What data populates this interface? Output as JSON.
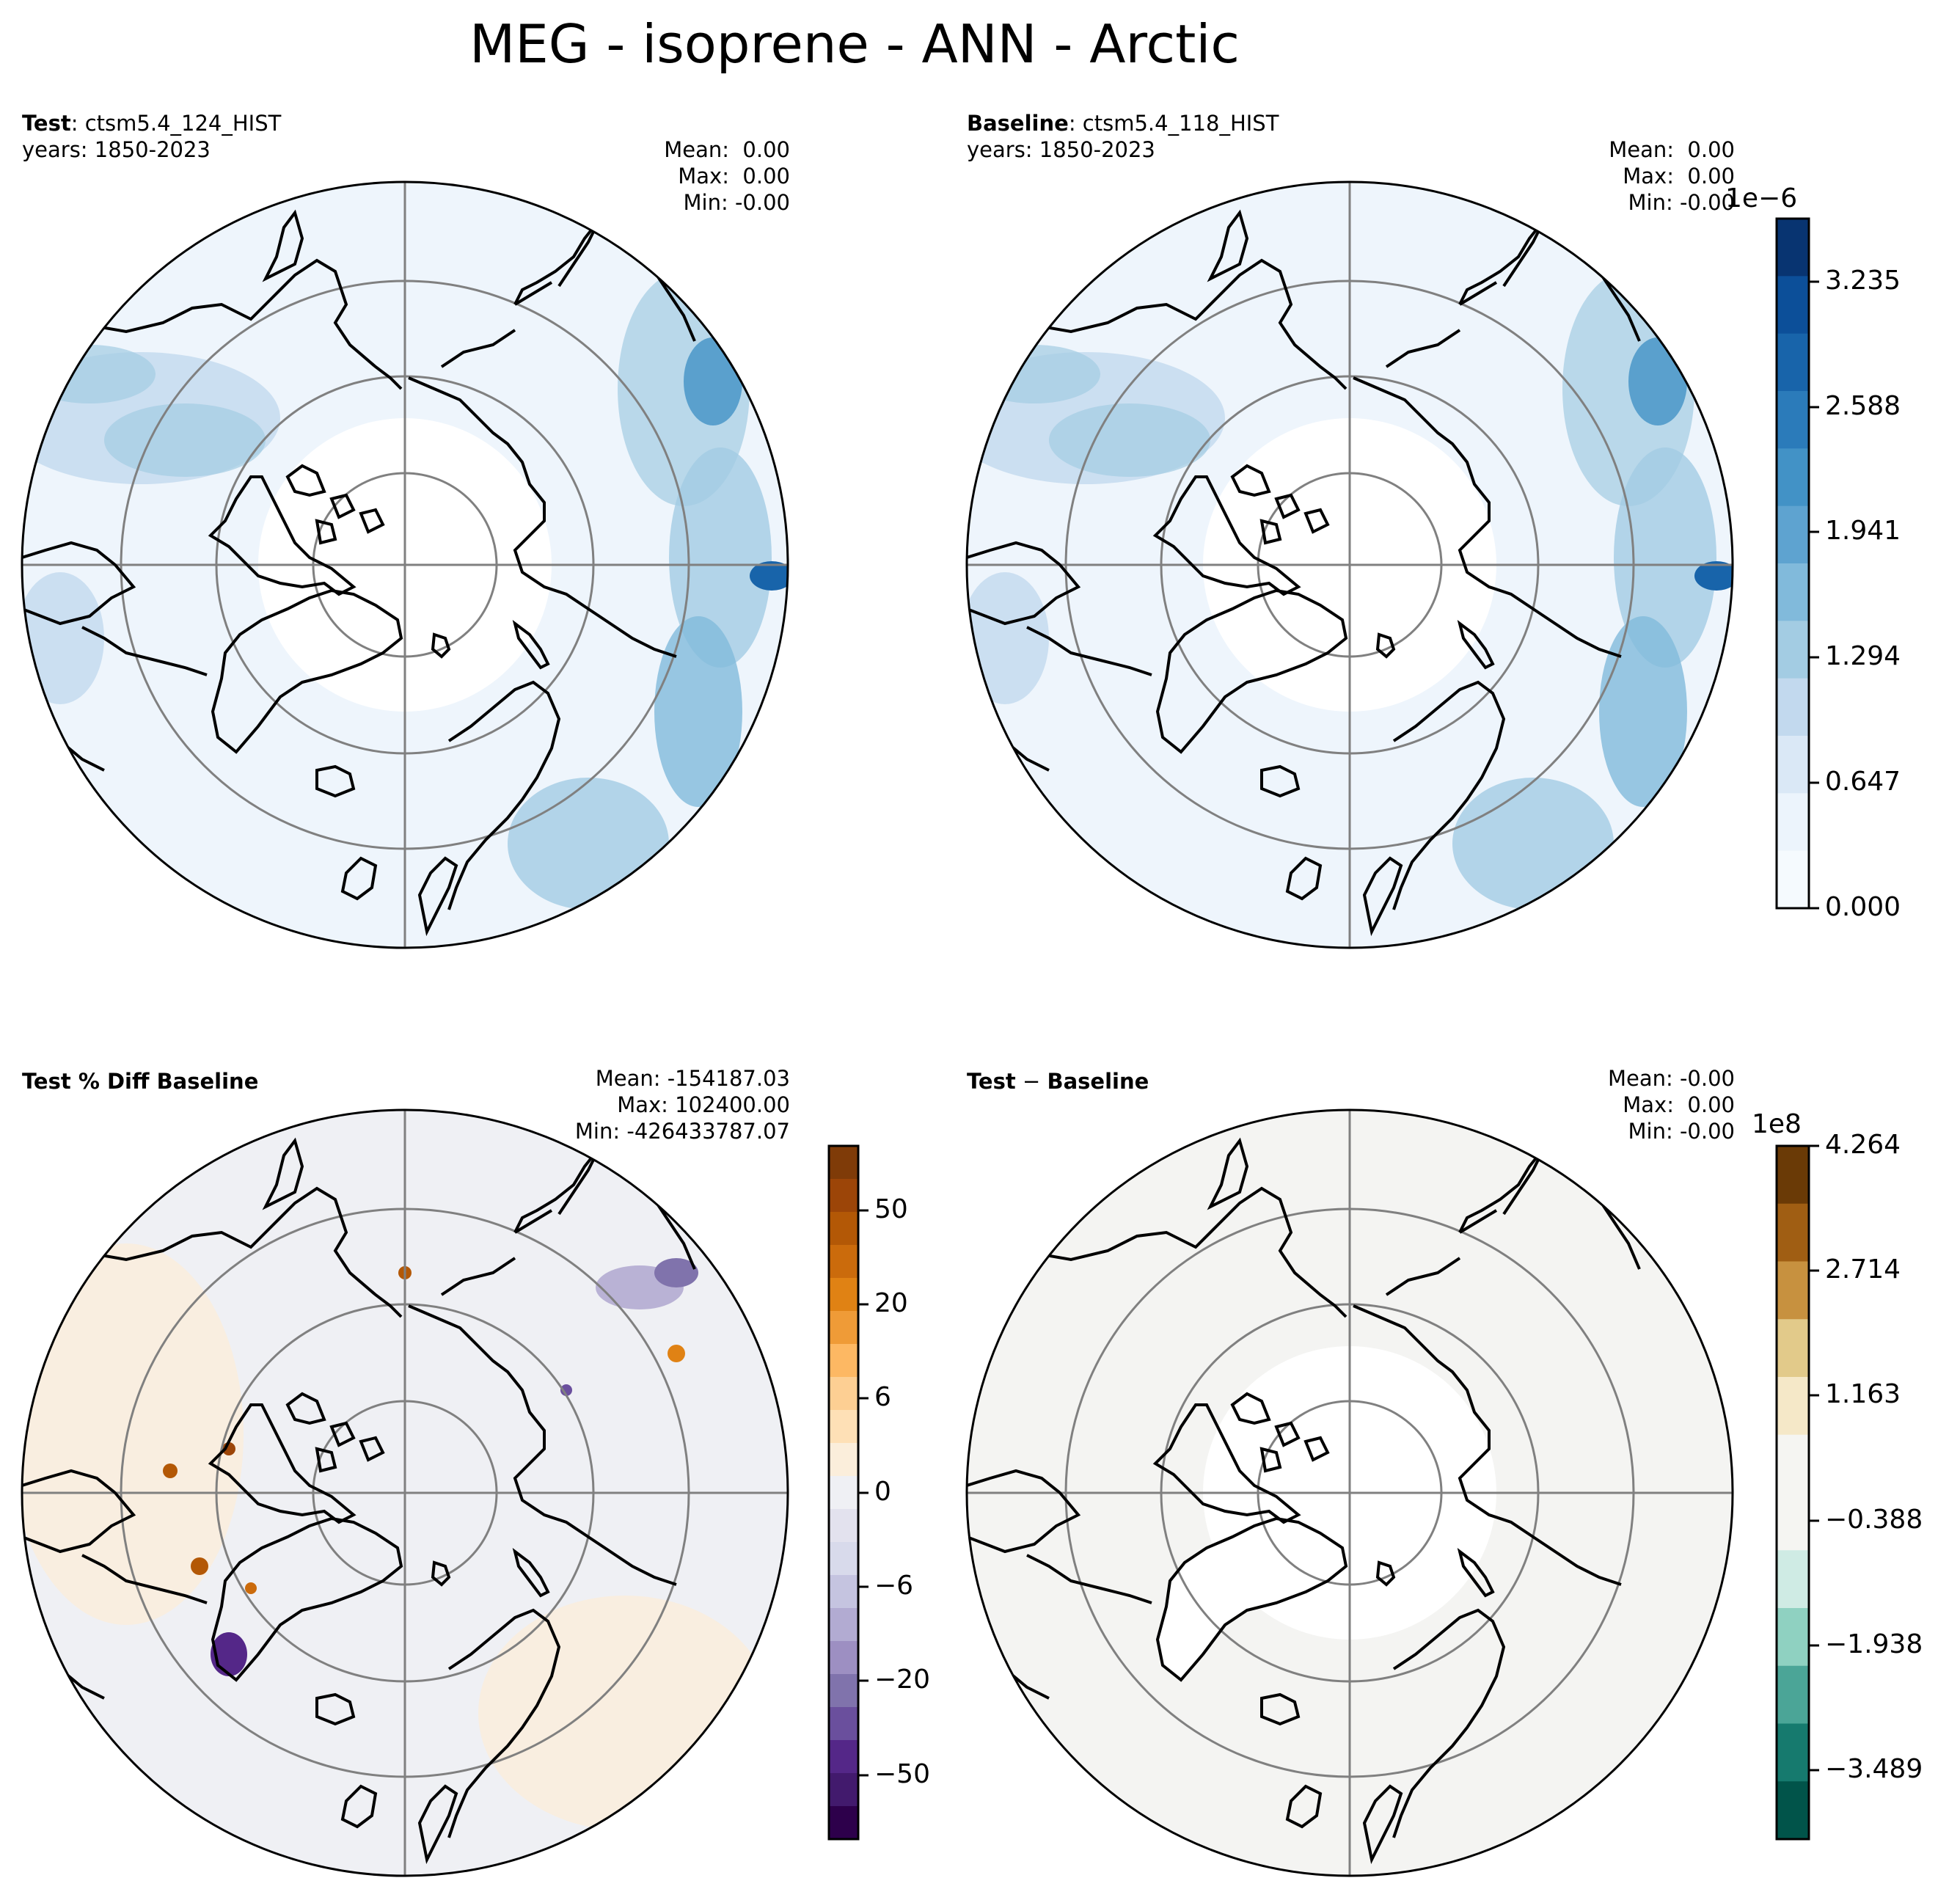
{
  "figure": {
    "title": "MEG - isoprene - ANN - Arctic"
  },
  "panels": {
    "test": {
      "label_bold": "Test",
      "label_rest": ": ctsm5.4_124_HIST",
      "years": "years: 1850-2023",
      "stats": [
        "Mean:  0.00",
        "Max:  0.00",
        "Min: -0.00"
      ]
    },
    "baseline": {
      "label_bold": "Baseline",
      "label_rest": ": ctsm5.4_118_HIST",
      "years": "years: 1850-2023",
      "stats": [
        "Mean:  0.00",
        "Max:  0.00",
        "Min: -0.00"
      ]
    },
    "pctdiff": {
      "label_bold": "Test % Diff Baseline",
      "stats": [
        "Mean: -154187.03",
        "Max: 102400.00",
        "Min: -426433787.07"
      ]
    },
    "diff": {
      "label_bold": "Test",
      "label_minus": " − ",
      "label_bold2": "Baseline",
      "stats": [
        "Mean: -0.00",
        "Max:  0.00",
        "Min: -0.00"
      ]
    }
  },
  "colorbars": {
    "top": {
      "exponent": "1e−6",
      "ticks": [
        "3.235",
        "2.588",
        "1.941",
        "1.294",
        "0.647",
        "0.000"
      ],
      "colors": [
        "#083471",
        "#0c4f99",
        "#1864aa",
        "#2b7bba",
        "#4292c6",
        "#5ea3d0",
        "#81badb",
        "#a3cce3",
        "#c2d9ee",
        "#dae8f6",
        "#ecf4fc",
        "#f5fafe"
      ]
    },
    "pct": {
      "ticks": [
        "50",
        "20",
        "6",
        "0",
        "−6",
        "−20",
        "−50"
      ],
      "colors": [
        "#7f3b08",
        "#9c4508",
        "#b35806",
        "#cb6b0c",
        "#e08214",
        "#ef9b37",
        "#fdb863",
        "#fdcf93",
        "#fee0b6",
        "#fbeedb",
        "#eff0f4",
        "#e3e2ee",
        "#d8daeb",
        "#c5c4e0",
        "#b2abd2",
        "#9d8fc2",
        "#8073ac",
        "#6a4f9d",
        "#542788",
        "#421a6d",
        "#2d004b"
      ]
    },
    "diff": {
      "exponent": "1e8",
      "ticks": [
        "4.264",
        "2.714",
        "1.163",
        "−0.388",
        "−1.938",
        "−3.489"
      ],
      "colors": [
        "#6a3a06",
        "#a05e13",
        "#c7913f",
        "#e2ca8a",
        "#f5e8c8",
        "#f5f5f2",
        "#f5f5f2",
        "#cfebe4",
        "#8fd1c1",
        "#4ba597",
        "#167a6e",
        "#01544a"
      ]
    }
  }
}
